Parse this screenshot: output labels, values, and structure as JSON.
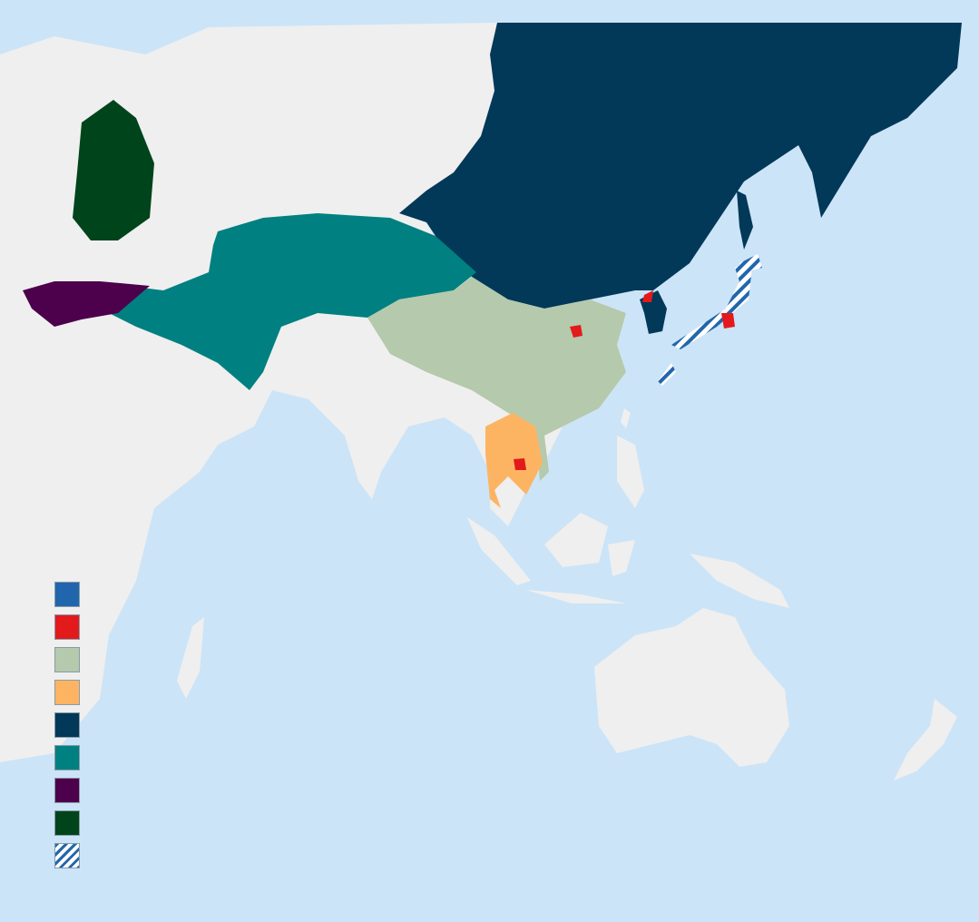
{
  "map": {
    "ocean_color": "#cce4f7",
    "land_color": "#efefef",
    "regions": [
      {
        "id": "russia-far-east",
        "color": "#023858"
      },
      {
        "id": "central-asia",
        "color": "#008080"
      },
      {
        "id": "anatolia-greece",
        "color": "#4d004b"
      },
      {
        "id": "eastern-europe",
        "color": "#00441b"
      },
      {
        "id": "china",
        "color": "#b5c9ac"
      },
      {
        "id": "indochina",
        "color": "#fdb462"
      },
      {
        "id": "japan",
        "color": "#2166ac",
        "pattern": "hatched"
      },
      {
        "id": "capitals",
        "color": "#e31a1c"
      }
    ]
  },
  "legend": {
    "items": [
      {
        "color": "#2166ac"
      },
      {
        "color": "#e31a1c"
      },
      {
        "color": "#b5c9ac"
      },
      {
        "color": "#fdb462"
      },
      {
        "color": "#023858"
      },
      {
        "color": "#008080"
      },
      {
        "color": "#4d004b"
      },
      {
        "color": "#00441b"
      },
      {
        "color": "#2166ac",
        "pattern": "hatched"
      }
    ]
  }
}
